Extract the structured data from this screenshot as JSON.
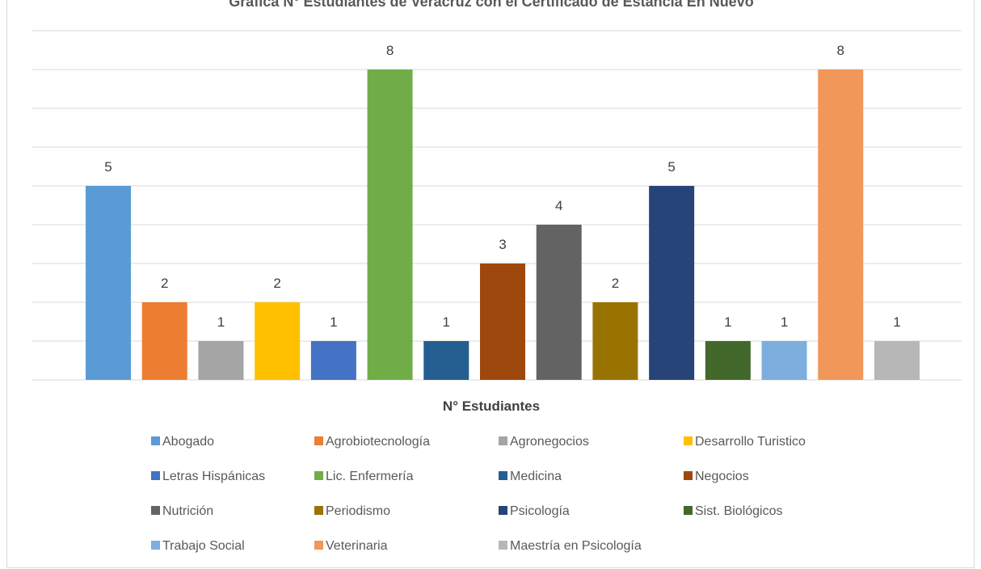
{
  "chart_data": {
    "type": "bar",
    "title": "Gráfica N° Estudiantes de Veracruz con el Certificado de Estancia En Nuevo",
    "xlabel": "N° Estudiantes",
    "ylabel": "",
    "ylim": [
      0,
      9
    ],
    "grid": true,
    "legend": "bottom",
    "categories": [
      "N° Estudiantes"
    ],
    "series": [
      {
        "name": "Abogado",
        "value": 5,
        "color": "#5b9bd5"
      },
      {
        "name": "Agrobiotecnología",
        "value": 2,
        "color": "#ed7d31"
      },
      {
        "name": "Agronegocios",
        "value": 1,
        "color": "#a5a5a5"
      },
      {
        "name": "Desarrollo Turistico",
        "value": 2,
        "color": "#ffc000"
      },
      {
        "name": "Letras Hispánicas",
        "value": 1,
        "color": "#4472c4"
      },
      {
        "name": "Lic. Enfermería",
        "value": 8,
        "color": "#70ad47"
      },
      {
        "name": "Medicina",
        "value": 1,
        "color": "#255e91"
      },
      {
        "name": "Negocios",
        "value": 3,
        "color": "#9e480e"
      },
      {
        "name": "Nutrición",
        "value": 4,
        "color": "#636363"
      },
      {
        "name": "Periodismo",
        "value": 2,
        "color": "#997300"
      },
      {
        "name": "Psicología",
        "value": 5,
        "color": "#264478"
      },
      {
        "name": "Sist. Biológicos",
        "value": 1,
        "color": "#43682b"
      },
      {
        "name": "Trabajo Social",
        "value": 1,
        "color": "#7cafdd"
      },
      {
        "name": "Veterinaria",
        "value": 8,
        "color": "#f1975a"
      },
      {
        "name": "Maestría en Psicología",
        "value": 1,
        "color": "#b7b7b7"
      }
    ]
  }
}
